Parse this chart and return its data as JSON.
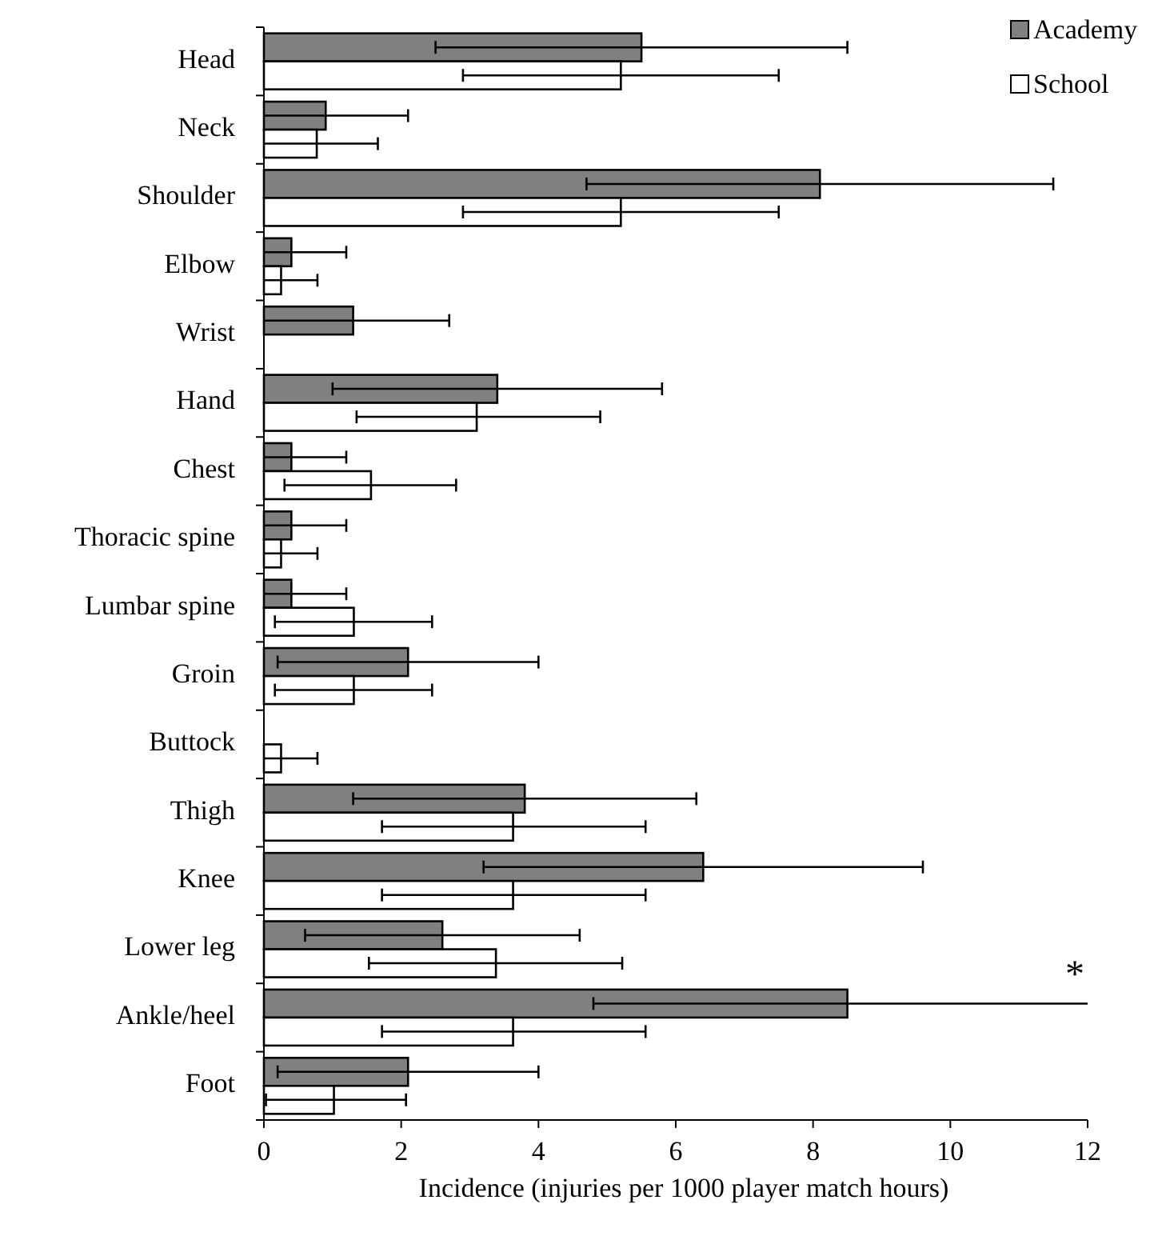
{
  "chart_data": {
    "type": "bar",
    "orientation": "horizontal",
    "xlabel": "Incidence (injuries per 1000 player match hours)",
    "categories": [
      "Head",
      "Neck",
      "Shoulder",
      "Elbow",
      "Wrist",
      "Hand",
      "Chest",
      "Thoracic spine",
      "Lumbar spine",
      "Groin",
      "Buttock",
      "Thigh",
      "Knee",
      "Lower leg",
      "Ankle/heel",
      "Foot"
    ],
    "series": [
      {
        "name": "Academy",
        "color": "#808080",
        "values": [
          5.5,
          0.9,
          8.1,
          0.4,
          1.3,
          3.4,
          0.4,
          0.4,
          0.4,
          2.1,
          0,
          3.8,
          6.4,
          2.6,
          8.5,
          2.1
        ],
        "errors": [
          [
            2.5,
            8.5
          ],
          [
            0,
            2.1
          ],
          [
            4.7,
            11.5
          ],
          [
            0,
            1.2
          ],
          [
            0,
            2.7
          ],
          [
            1.0,
            5.8
          ],
          [
            0,
            1.2
          ],
          [
            0,
            1.2
          ],
          [
            0,
            1.2
          ],
          [
            0.2,
            4.0
          ],
          null,
          [
            1.3,
            6.3
          ],
          [
            3.2,
            9.6
          ],
          [
            0.6,
            4.6
          ],
          [
            4.8,
            12
          ],
          [
            0.2,
            4.0
          ]
        ]
      },
      {
        "name": "School",
        "color": "#ffffff",
        "values": [
          5.2,
          0.77,
          5.2,
          0.25,
          0,
          3.1,
          1.56,
          0.25,
          1.31,
          1.31,
          0.25,
          3.63,
          3.63,
          3.38,
          3.63,
          1.02
        ],
        "errors": [
          [
            2.9,
            7.5
          ],
          [
            0,
            1.66
          ],
          [
            2.9,
            7.5
          ],
          [
            0,
            0.78
          ],
          null,
          [
            1.35,
            4.9
          ],
          [
            0.3,
            2.8
          ],
          [
            0,
            0.78
          ],
          [
            0.16,
            2.45
          ],
          [
            0.16,
            2.45
          ],
          [
            0,
            0.78
          ],
          [
            1.72,
            5.56
          ],
          [
            1.72,
            5.56
          ],
          [
            1.53,
            5.22
          ],
          [
            1.72,
            5.56
          ],
          [
            0.03,
            2.07
          ]
        ]
      }
    ],
    "xlim": [
      0,
      12
    ],
    "xticks": [
      0,
      2,
      4,
      6,
      8,
      10,
      12
    ],
    "grid": false,
    "legend": "top right",
    "annotations": [
      "*"
    ]
  }
}
